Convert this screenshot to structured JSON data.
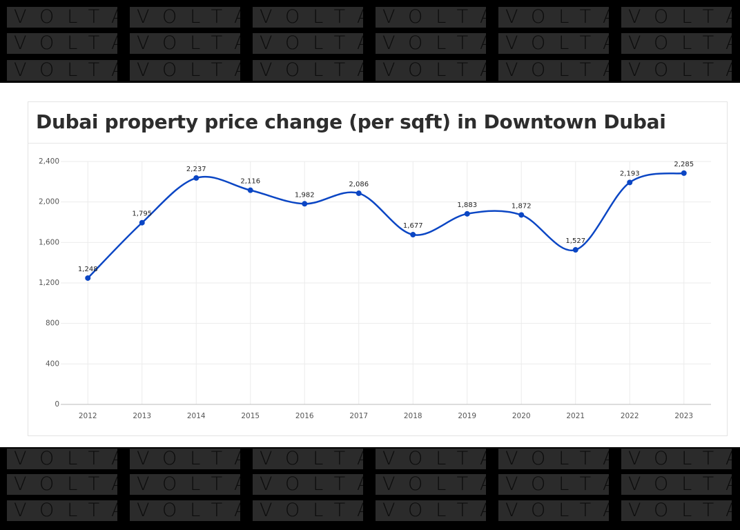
{
  "watermark": "VOLTA",
  "chart_data": {
    "type": "line",
    "title": "Dubai property price change (per sqft) in Downtown Dubai",
    "categories": [
      "2012",
      "2013",
      "2014",
      "2015",
      "2016",
      "2017",
      "2018",
      "2019",
      "2020",
      "2021",
      "2022",
      "2023"
    ],
    "series": [
      {
        "color": "#0b46c4",
        "values": [
          1248,
          1795,
          2237,
          2116,
          1982,
          2086,
          1677,
          1883,
          1872,
          1527,
          2193,
          2285
        ],
        "value_labels": [
          "1,248",
          "1,795",
          "2,237",
          "2,116",
          "1,982",
          "2,086",
          "1,677",
          "1,883",
          "1,872",
          "1,527",
          "2,193",
          "2,285"
        ]
      }
    ],
    "ylim": [
      0,
      2400
    ],
    "yticks": [
      0,
      400,
      800,
      {
        "value": 1200,
        "label": "1,200"
      },
      {
        "value": 1600,
        "label": "1,600"
      },
      {
        "value": 2000,
        "label": "2,000"
      },
      {
        "value": 2400,
        "label": "2,400"
      }
    ],
    "grid": true
  }
}
